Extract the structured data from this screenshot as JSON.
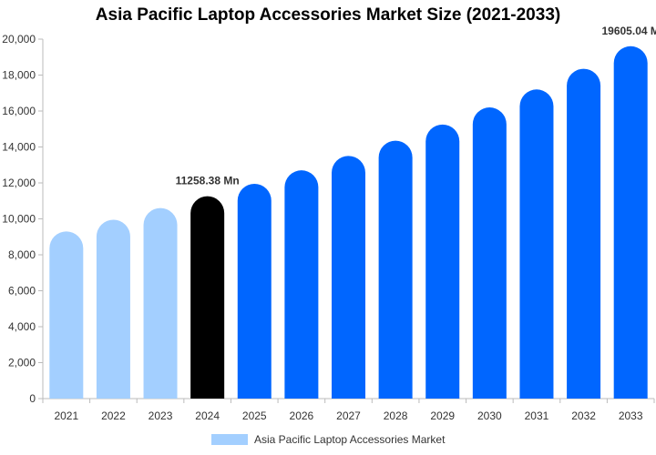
{
  "colors": {
    "historical": "#a3cfff",
    "base_year": "#000000",
    "forecast": "#0066ff",
    "axis": "#bbbbbb"
  },
  "chart_data": {
    "type": "bar",
    "title": "Asia Pacific Laptop Accessories Market Size (2021-2033)",
    "xlabel": "",
    "ylabel": "",
    "ylim": [
      0,
      20000
    ],
    "yticks": [
      0,
      2000,
      4000,
      6000,
      8000,
      10000,
      12000,
      14000,
      16000,
      18000,
      20000
    ],
    "ytick_labels": [
      "0",
      "2,000",
      "4,000",
      "6,000",
      "8,000",
      "10,000",
      "12,000",
      "14,000",
      "16,000",
      "18,000",
      "20,000"
    ],
    "categories": [
      "2021",
      "2022",
      "2023",
      "2024",
      "2025",
      "2026",
      "2027",
      "2028",
      "2029",
      "2030",
      "2031",
      "2032",
      "2033"
    ],
    "series": [
      {
        "name": "Asia Pacific Laptop Accessories Market",
        "values": [
          9300,
          9950,
          10600,
          11258.38,
          11950,
          12700,
          13500,
          14350,
          15250,
          16200,
          17200,
          18350,
          19605.04
        ],
        "color_groups": [
          "historical",
          "historical",
          "historical",
          "base_year",
          "forecast",
          "forecast",
          "forecast",
          "forecast",
          "forecast",
          "forecast",
          "forecast",
          "forecast",
          "forecast"
        ]
      }
    ],
    "data_labels": [
      {
        "index": 3,
        "text": "11258.38 Mn"
      },
      {
        "index": 12,
        "text": "19605.04 M"
      }
    ],
    "legend": {
      "position": "bottom",
      "label": "Asia Pacific Laptop Accessories Market"
    },
    "grid": false
  }
}
